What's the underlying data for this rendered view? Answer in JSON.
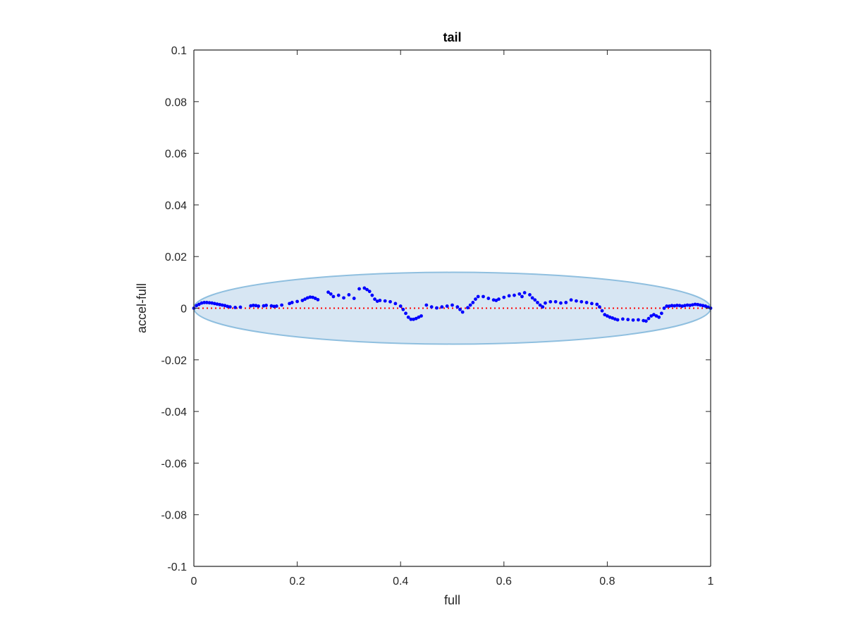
{
  "chart_data": {
    "type": "scatter",
    "title": "tail",
    "xlabel": "full",
    "ylabel": "accel-full",
    "xlim": [
      0,
      1
    ],
    "ylim": [
      -0.1,
      0.1
    ],
    "x_ticks": [
      0,
      0.2,
      0.4,
      0.6,
      0.8,
      1
    ],
    "x_tick_labels": [
      "0",
      "0.2",
      "0.4",
      "0.6",
      "0.8",
      "1"
    ],
    "y_ticks": [
      0.1,
      0.08,
      0.06,
      0.04,
      0.02,
      0,
      -0.02,
      -0.04,
      -0.06,
      -0.08,
      -0.1
    ],
    "y_tick_labels": [
      "0.1",
      "0.08",
      "0.06",
      "0.04",
      "0.02",
      "0",
      "-0.02",
      "-0.04",
      "-0.06",
      "-0.08",
      "-0.1"
    ],
    "grid": false,
    "colors": {
      "points": "#0000ff",
      "reference_line": "#ff0000",
      "ellipse_fill": "#d7e6f3",
      "ellipse_stroke": "#8fbfdf",
      "axes": "#262626"
    },
    "reference_line": {
      "y": 0,
      "x_range": [
        0,
        1
      ],
      "style": "dotted"
    },
    "confidence_ellipse": {
      "center": [
        0.5,
        0
      ],
      "x_semi_axis": 0.5,
      "y_semi_axis": 0.0139
    },
    "series": [
      {
        "x": [
          0.0,
          0.005,
          0.01,
          0.015,
          0.02,
          0.025,
          0.03,
          0.035,
          0.04,
          0.045,
          0.05,
          0.055,
          0.06,
          0.065,
          0.07,
          0.08,
          0.09,
          0.11,
          0.115,
          0.12,
          0.125,
          0.135,
          0.14,
          0.15,
          0.155,
          0.16,
          0.17,
          0.185,
          0.19,
          0.2,
          0.21,
          0.215,
          0.22,
          0.225,
          0.23,
          0.235,
          0.24,
          0.26,
          0.265,
          0.27,
          0.28,
          0.29,
          0.3,
          0.31,
          0.32,
          0.33,
          0.335,
          0.34,
          0.345,
          0.35,
          0.355,
          0.36,
          0.37,
          0.38,
          0.39,
          0.4,
          0.405,
          0.41,
          0.415,
          0.42,
          0.425,
          0.43,
          0.435,
          0.44,
          0.45,
          0.46,
          0.47,
          0.48,
          0.49,
          0.5,
          0.51,
          0.515,
          0.52,
          0.53,
          0.535,
          0.54,
          0.545,
          0.55,
          0.56,
          0.57,
          0.58,
          0.585,
          0.59,
          0.6,
          0.61,
          0.62,
          0.63,
          0.635,
          0.64,
          0.65,
          0.655,
          0.66,
          0.665,
          0.67,
          0.675,
          0.68,
          0.69,
          0.7,
          0.71,
          0.72,
          0.73,
          0.74,
          0.75,
          0.76,
          0.77,
          0.78,
          0.785,
          0.79,
          0.795,
          0.8,
          0.805,
          0.81,
          0.815,
          0.82,
          0.83,
          0.84,
          0.85,
          0.86,
          0.87,
          0.875,
          0.88,
          0.885,
          0.89,
          0.895,
          0.9,
          0.905,
          0.91,
          0.915,
          0.92,
          0.925,
          0.93,
          0.935,
          0.94,
          0.945,
          0.95,
          0.955,
          0.96,
          0.965,
          0.97,
          0.975,
          0.98,
          0.985,
          0.99,
          0.995,
          1.0
        ],
        "y": [
          0.0,
          0.001,
          0.0015,
          0.002,
          0.0022,
          0.0022,
          0.0021,
          0.002,
          0.0018,
          0.0016,
          0.0014,
          0.0012,
          0.001,
          0.0007,
          0.0005,
          0.0003,
          0.0004,
          0.0009,
          0.0011,
          0.001,
          0.0008,
          0.0009,
          0.0011,
          0.0009,
          0.0007,
          0.0008,
          0.0012,
          0.0018,
          0.0022,
          0.0026,
          0.003,
          0.0035,
          0.004,
          0.0043,
          0.0042,
          0.0038,
          0.0033,
          0.0062,
          0.0055,
          0.0045,
          0.005,
          0.004,
          0.0052,
          0.0038,
          0.0075,
          0.0078,
          0.0072,
          0.0065,
          0.005,
          0.0035,
          0.0027,
          0.003,
          0.0028,
          0.0025,
          0.0018,
          0.0008,
          -0.0005,
          -0.002,
          -0.0035,
          -0.0043,
          -0.0043,
          -0.004,
          -0.0035,
          -0.003,
          0.0012,
          0.0005,
          0.0001,
          0.0005,
          0.0008,
          0.0012,
          0.0005,
          -0.0005,
          -0.0015,
          0.0002,
          0.0012,
          0.0022,
          0.0035,
          0.0045,
          0.0045,
          0.0038,
          0.0032,
          0.003,
          0.0035,
          0.0042,
          0.0048,
          0.005,
          0.0055,
          0.0045,
          0.006,
          0.0052,
          0.004,
          0.0032,
          0.0022,
          0.0012,
          0.0005,
          0.002,
          0.0025,
          0.0025,
          0.002,
          0.0022,
          0.0032,
          0.0028,
          0.0025,
          0.0022,
          0.0018,
          0.0015,
          0.0005,
          -0.001,
          -0.0025,
          -0.003,
          -0.0035,
          -0.0038,
          -0.0042,
          -0.0045,
          -0.0042,
          -0.0044,
          -0.0046,
          -0.0045,
          -0.0048,
          -0.005,
          -0.004,
          -0.003,
          -0.0025,
          -0.003,
          -0.0035,
          -0.002,
          0.0,
          0.0008,
          0.0008,
          0.001,
          0.0009,
          0.0011,
          0.001,
          0.0008,
          0.001,
          0.0012,
          0.0011,
          0.0013,
          0.0015,
          0.0014,
          0.0012,
          0.001,
          0.0008,
          0.0004,
          0.0
        ]
      }
    ]
  }
}
